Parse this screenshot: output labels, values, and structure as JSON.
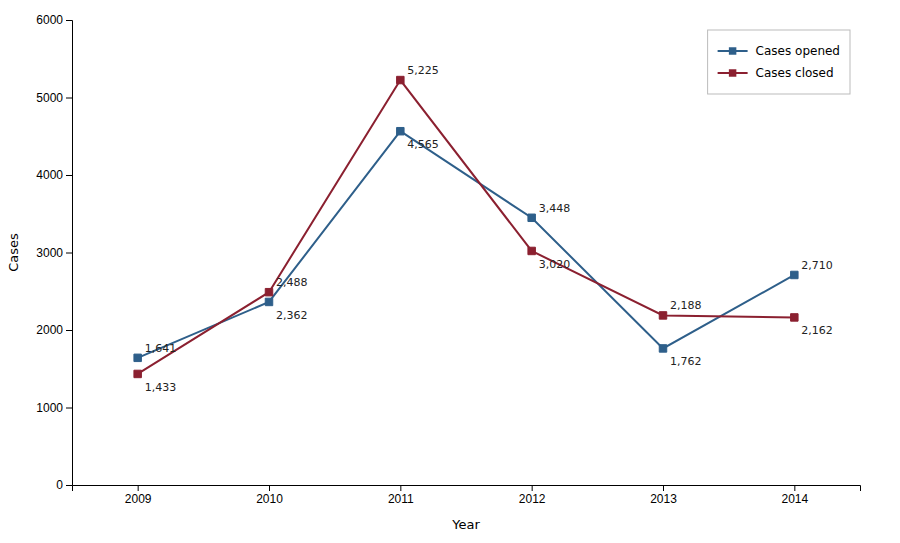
{
  "chart_data": {
    "type": "line",
    "x": [
      2009,
      2010,
      2011,
      2012,
      2013,
      2014
    ],
    "xlabel": "Year",
    "ylabel": "Cases",
    "xlim": [
      2008.5,
      2014.5
    ],
    "xticks": [
      2009,
      2010,
      2011,
      2012,
      2013,
      2014
    ],
    "ylim": [
      0,
      6000
    ],
    "yticks": [
      0,
      1000,
      2000,
      3000,
      4000,
      5000,
      6000
    ],
    "grid": false,
    "legend": "upper right",
    "data_labels": true,
    "series": [
      {
        "name": "Cases opened",
        "color": "#2E5F8A",
        "marker": "square",
        "values": [
          1641,
          2362,
          4565,
          3448,
          1762,
          2710
        ],
        "value_labels": [
          "1,641",
          "2,362",
          "4,565",
          "3,448",
          "1,762",
          "2,710"
        ]
      },
      {
        "name": "Cases closed",
        "color": "#8B2030",
        "marker": "square",
        "values": [
          1433,
          2488,
          5225,
          3020,
          2188,
          2162
        ],
        "value_labels": [
          "1,433",
          "2,488",
          "5,225",
          "3,020",
          "2,188",
          "2,162"
        ]
      }
    ]
  }
}
